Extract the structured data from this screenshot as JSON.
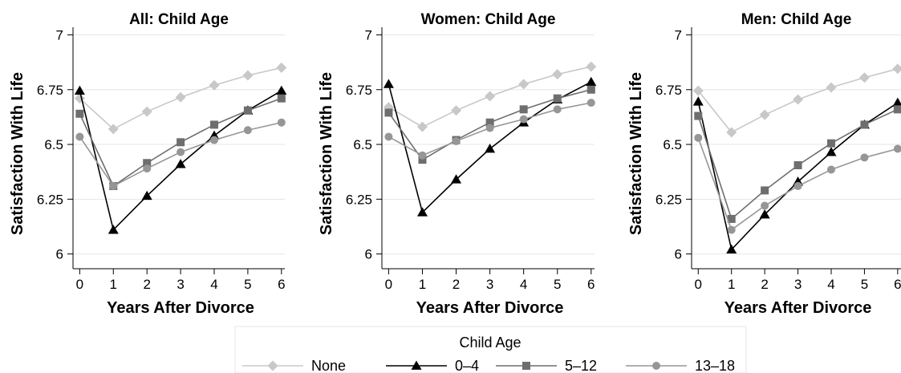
{
  "chart_data": [
    {
      "type": "line",
      "title": "All: Child Age",
      "xlabel": "Years After Divorce",
      "ylabel": "Satisfaction With Life",
      "x": [
        0,
        1,
        2,
        3,
        4,
        5,
        6
      ],
      "xlim": [
        -0.2,
        6.1
      ],
      "ylim": [
        5.94,
        7.02
      ],
      "yticks": [
        6,
        6.25,
        6.5,
        6.75,
        7
      ],
      "ytick_labels": [
        "6",
        "6.25",
        "6.5",
        "6.75",
        "7"
      ],
      "grid": true,
      "series": [
        {
          "name": "None",
          "values": [
            6.71,
            6.57,
            6.65,
            6.715,
            6.77,
            6.815,
            6.85
          ]
        },
        {
          "name": "0–4",
          "values": [
            6.745,
            6.11,
            6.265,
            6.41,
            6.54,
            6.655,
            6.745
          ]
        },
        {
          "name": "5–12",
          "values": [
            6.64,
            6.31,
            6.415,
            6.51,
            6.59,
            6.655,
            6.71
          ]
        },
        {
          "name": "13–18",
          "values": [
            6.535,
            6.31,
            6.39,
            6.465,
            6.52,
            6.565,
            6.6
          ]
        }
      ]
    },
    {
      "type": "line",
      "title": "Women: Child Age",
      "xlabel": "Years After Divorce",
      "ylabel": "Satisfaction With Life",
      "x": [
        0,
        1,
        2,
        3,
        4,
        5,
        6
      ],
      "xlim": [
        -0.2,
        6.1
      ],
      "ylim": [
        5.94,
        7.02
      ],
      "yticks": [
        6,
        6.25,
        6.5,
        6.75,
        7
      ],
      "ytick_labels": [
        "6",
        "6.25",
        "6.5",
        "6.75",
        "7"
      ],
      "grid": true,
      "series": [
        {
          "name": "None",
          "values": [
            6.67,
            6.58,
            6.655,
            6.72,
            6.775,
            6.82,
            6.855
          ]
        },
        {
          "name": "0–4",
          "values": [
            6.775,
            6.19,
            6.34,
            6.48,
            6.6,
            6.705,
            6.785
          ]
        },
        {
          "name": "5–12",
          "values": [
            6.645,
            6.43,
            6.52,
            6.6,
            6.66,
            6.71,
            6.75
          ]
        },
        {
          "name": "13–18",
          "values": [
            6.535,
            6.45,
            6.515,
            6.575,
            6.615,
            6.66,
            6.69
          ]
        }
      ]
    },
    {
      "type": "line",
      "title": "Men: Child Age",
      "xlabel": "Years After Divorce",
      "ylabel": "Satisfaction With Life",
      "x": [
        0,
        1,
        2,
        3,
        4,
        5,
        6
      ],
      "xlim": [
        -0.2,
        6.1
      ],
      "ylim": [
        5.94,
        7.02
      ],
      "yticks": [
        6,
        6.25,
        6.5,
        6.75,
        7
      ],
      "ytick_labels": [
        "6",
        "6.25",
        "6.5",
        "6.75",
        "7"
      ],
      "grid": true,
      "series": [
        {
          "name": "None",
          "values": [
            6.745,
            6.555,
            6.635,
            6.705,
            6.76,
            6.805,
            6.845
          ]
        },
        {
          "name": "0–4",
          "values": [
            6.695,
            6.02,
            6.18,
            6.33,
            6.465,
            6.59,
            6.69
          ]
        },
        {
          "name": "5–12",
          "values": [
            6.63,
            6.16,
            6.29,
            6.405,
            6.505,
            6.59,
            6.66
          ]
        },
        {
          "name": "13–18",
          "values": [
            6.53,
            6.11,
            6.22,
            6.31,
            6.385,
            6.44,
            6.48
          ]
        }
      ]
    }
  ],
  "legend": {
    "title": "Child Age",
    "position": "bottom-center",
    "items": [
      {
        "label": "None",
        "color": "#c8c8c8",
        "marker": "diamond"
      },
      {
        "label": "0–4",
        "color": "#000000",
        "marker": "triangle"
      },
      {
        "label": "5–12",
        "color": "#6e6e6e",
        "marker": "square"
      },
      {
        "label": "13–18",
        "color": "#969696",
        "marker": "circle"
      }
    ]
  }
}
